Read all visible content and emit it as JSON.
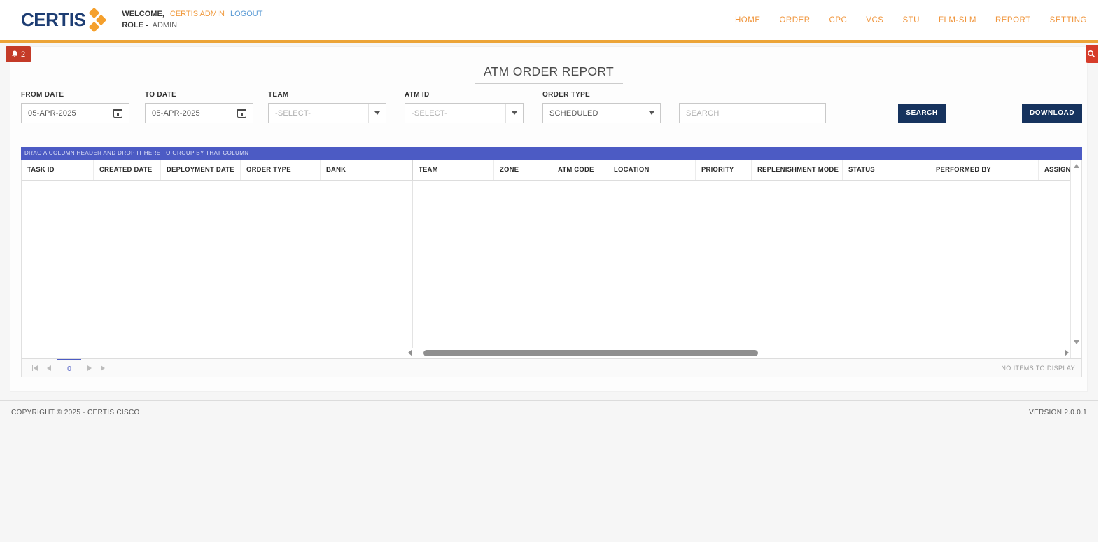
{
  "header": {
    "logo_text": "CERTIS",
    "welcome_prefix": "WELCOME,",
    "username": "CERTIS ADMIN",
    "logout_label": "LOGOUT",
    "role_label": "ROLE -",
    "role_value": "ADMIN",
    "nav_items": [
      "HOME",
      "ORDER",
      "CPC",
      "VCS",
      "STU",
      "FLM-SLM",
      "REPORT",
      "SETTING"
    ]
  },
  "notification": {
    "count": "2"
  },
  "page": {
    "title": "ATM ORDER REPORT"
  },
  "filters": {
    "from_date": {
      "label": "FROM DATE",
      "value": "05-APR-2025"
    },
    "to_date": {
      "label": "TO DATE",
      "value": "05-APR-2025"
    },
    "team": {
      "label": "TEAM",
      "value": "-SELECT-"
    },
    "atm_id": {
      "label": "ATM ID",
      "value": "-SELECT-"
    },
    "order_type": {
      "label": "ORDER TYPE",
      "value": "SCHEDULED"
    },
    "search_placeholder": "SEARCH",
    "search_button": "SEARCH",
    "download_button": "DOWNLOAD"
  },
  "table": {
    "drag_hint": "DRAG A COLUMN HEADER AND DROP IT HERE TO GROUP BY THAT COLUMN",
    "columns": [
      "TASK ID",
      "CREATED DATE",
      "DEPLOYMENT DATE",
      "ORDER TYPE",
      "BANK",
      "TEAM",
      "ZONE",
      "ATM CODE",
      "LOCATION",
      "PRIORITY",
      "REPLENISHMENT MODE",
      "STATUS",
      "PERFORMED BY",
      "ASSIGNMENT"
    ],
    "rows": [],
    "pager": {
      "current_page": "0",
      "status": "NO ITEMS TO DISPLAY"
    }
  },
  "footer": {
    "copyright": "COPYRIGHT © 2025 - CERTIS CISCO",
    "version": "VERSION 2.0.0.1"
  },
  "colors": {
    "brand_navy": "#1d3d73",
    "brand_orange": "#eca438",
    "nav_orange": "#f0953c",
    "alert_red": "#c43b28",
    "search_fab_red": "#d63c2a",
    "grid_bar_indigo": "#4c5bc4",
    "button_navy": "#16335e",
    "link_blue": "#5b9bd5"
  }
}
